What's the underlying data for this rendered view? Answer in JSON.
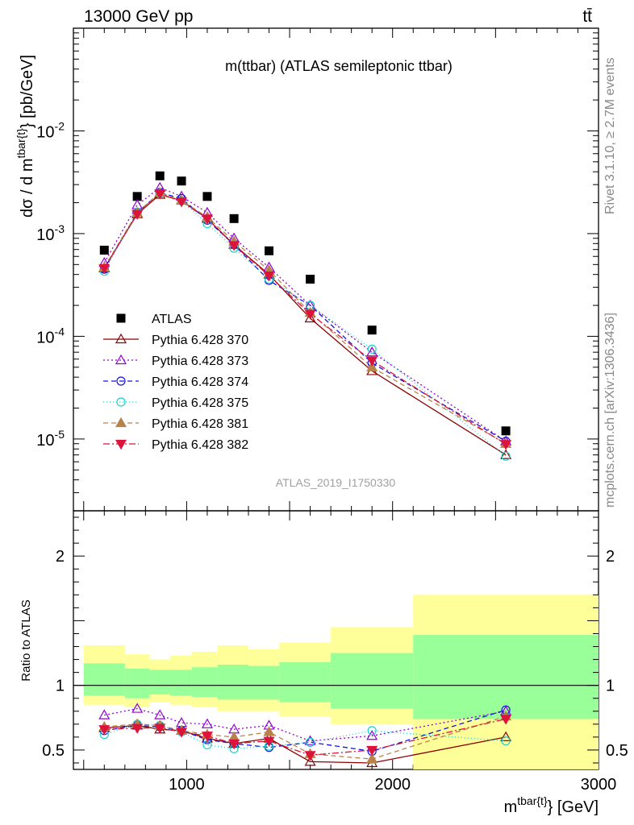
{
  "header": {
    "left": "13000 GeV pp",
    "right": "tt̄"
  },
  "side_labels": {
    "rivet": "Rivet 3.1.10, ≥ 2.7M events",
    "mcplots": "mcplots.cern.ch [arXiv:1306.3436]"
  },
  "colors": {
    "ATLAS": "#000000",
    "370": "#8b0000",
    "373": "#9400d3",
    "374": "#1414dc",
    "375": "#20d0c8",
    "381": "#b8834a",
    "382": "#dc143c",
    "band_outer": "#ffff99",
    "band_inner": "#99ff99"
  },
  "chart_data": [
    {
      "type": "line",
      "title": "m(ttbar) (ATLAS semileptonic ttbar)",
      "watermark": "ATLAS_2019_I1750330",
      "ylabel": "dσ / d m^tbar{t} [pb/GeV]",
      "yscale": "log",
      "ylim": [
        2e-06,
        0.1
      ],
      "xlim": [
        450,
        3000
      ],
      "ytick_labels": [
        "10^-5",
        "10^-4",
        "10^-3",
        "10^-2"
      ],
      "bin_edges": [
        500,
        700,
        820,
        920,
        1025,
        1150,
        1300,
        1450,
        1700,
        2100,
        3000
      ],
      "x": [
        600,
        760,
        870,
        975,
        1100,
        1230,
        1400,
        1600,
        1900,
        2550
      ],
      "series": [
        {
          "name": "ATLAS",
          "style": "data",
          "values": [
            0.00069,
            0.0023,
            0.00365,
            0.00325,
            0.0023,
            0.0014,
            0.00068,
            0.00036,
            0.000115,
            1.2e-05
          ]
        },
        {
          "name": "Pythia 6.428 370",
          "style": "open-triangle-up",
          "dash": "",
          "values": [
            0.00046,
            0.00155,
            0.0024,
            0.0021,
            0.0014,
            0.00078,
            0.0004,
            0.00015,
            4.6e-05,
            7e-06
          ]
        },
        {
          "name": "Pythia 6.428 373",
          "style": "open-triangle-up",
          "dash": "2,3",
          "values": [
            0.00052,
            0.0019,
            0.0028,
            0.0023,
            0.0016,
            0.0009,
            0.00047,
            0.0002,
            7e-05,
            9.5e-06
          ]
        },
        {
          "name": "Pythia 6.428 374",
          "style": "open-circle",
          "dash": "6,4",
          "values": [
            0.00045,
            0.0016,
            0.0025,
            0.0022,
            0.00135,
            0.00078,
            0.00035,
            0.0002,
            5.5e-05,
            9.5e-06
          ]
        },
        {
          "name": "Pythia 6.428 375",
          "style": "open-circle",
          "dash": "1,3",
          "values": [
            0.00043,
            0.00162,
            0.00245,
            0.00208,
            0.00125,
            0.00072,
            0.00036,
            0.0002,
            7.5e-05,
            6.8e-06
          ]
        },
        {
          "name": "Pythia 6.428 381",
          "style": "filled-triangle-up",
          "dash": "6,4",
          "values": [
            0.00047,
            0.0016,
            0.0025,
            0.0021,
            0.00145,
            0.00084,
            0.00044,
            0.00017,
            5e-05,
            9e-06
          ]
        },
        {
          "name": "Pythia 6.428 382",
          "style": "filled-triangle-down",
          "dash": "8,3,2,3",
          "values": [
            0.00046,
            0.00155,
            0.00245,
            0.00205,
            0.0014,
            0.00077,
            0.00039,
            0.000165,
            5.8e-05,
            8.9e-06
          ]
        }
      ],
      "legend": {
        "placement": "lower-left"
      }
    },
    {
      "type": "line",
      "ylabel": "Ratio to ATLAS",
      "xlabel": "m^tbar{t} [GeV]",
      "ylim": [
        0.35,
        2.35
      ],
      "xlim": [
        450,
        3000
      ],
      "xtick_labels": [
        "1000",
        "2000",
        "3000"
      ],
      "ytick_labels": [
        "0.5",
        "1",
        "2"
      ],
      "bands": {
        "outer_low": [
          0.85,
          0.83,
          0.87,
          0.85,
          0.83,
          0.8,
          0.8,
          0.76,
          0.7,
          0.35
        ],
        "outer_high": [
          1.31,
          1.24,
          1.2,
          1.23,
          1.26,
          1.31,
          1.28,
          1.33,
          1.45,
          1.7
        ],
        "inner_low": [
          0.92,
          0.9,
          0.93,
          0.92,
          0.91,
          0.89,
          0.89,
          0.87,
          0.82,
          0.74
        ],
        "inner_high": [
          1.17,
          1.13,
          1.12,
          1.12,
          1.14,
          1.16,
          1.15,
          1.18,
          1.25,
          1.39
        ]
      },
      "series": [
        {
          "name": "Pythia 6.428 370",
          "values": [
            0.67,
            0.69,
            0.66,
            0.65,
            0.59,
            0.55,
            0.59,
            0.41,
            0.4,
            0.6
          ]
        },
        {
          "name": "Pythia 6.428 373",
          "values": [
            0.77,
            0.82,
            0.77,
            0.71,
            0.7,
            0.66,
            0.69,
            0.57,
            0.61,
            0.8
          ]
        },
        {
          "name": "Pythia 6.428 374",
          "values": [
            0.65,
            0.69,
            0.68,
            0.65,
            0.58,
            0.55,
            0.52,
            0.56,
            0.49,
            0.81
          ]
        },
        {
          "name": "Pythia 6.428 375",
          "values": [
            0.62,
            0.7,
            0.69,
            0.64,
            0.54,
            0.51,
            0.53,
            0.56,
            0.65,
            0.57
          ]
        },
        {
          "name": "Pythia 6.428 381",
          "values": [
            0.68,
            0.7,
            0.69,
            0.65,
            0.62,
            0.6,
            0.64,
            0.47,
            0.43,
            0.76
          ]
        },
        {
          "name": "Pythia 6.428 382",
          "values": [
            0.66,
            0.67,
            0.67,
            0.64,
            0.61,
            0.55,
            0.57,
            0.46,
            0.5,
            0.74
          ]
        }
      ]
    }
  ]
}
